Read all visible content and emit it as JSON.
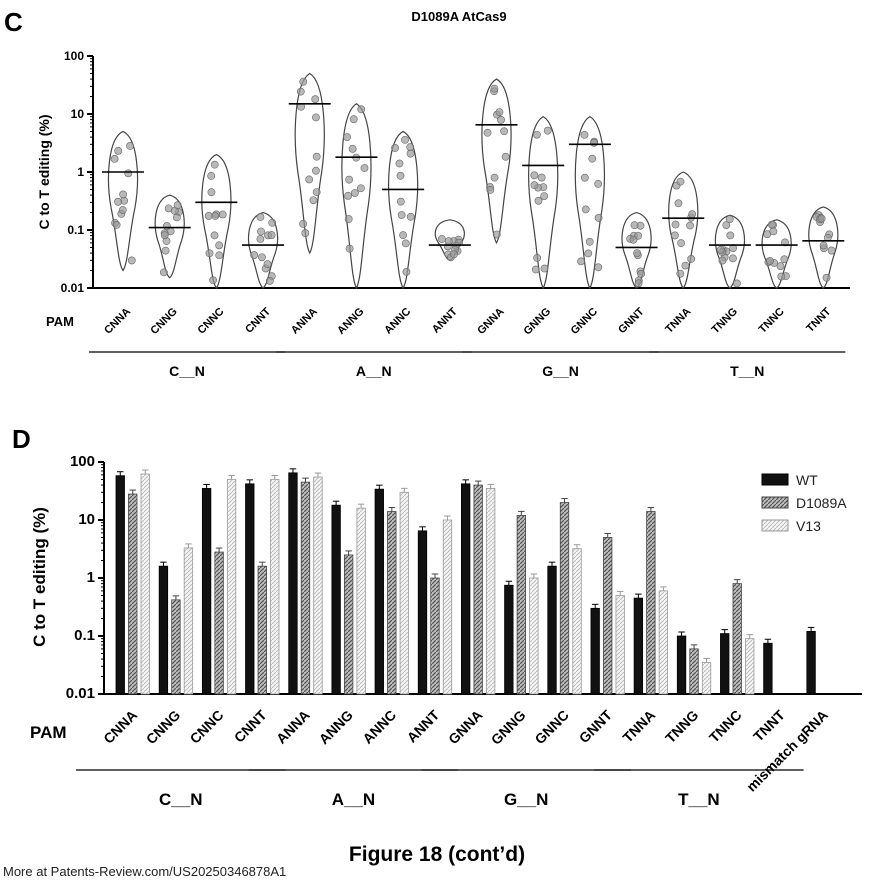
{
  "figure_caption": "Figure 18 (cont’d)",
  "footer": "More at Patents-Review.com/US20250346878A1",
  "colors": {
    "wt": "#111111",
    "d1089a": "#7a7a7a",
    "v13": "#e8e8e8",
    "stroke": "#333333",
    "dot": "#9a9a9a"
  },
  "chart_data": [
    {
      "panel": "C",
      "type": "violin",
      "title": "D1089A AtCas9",
      "ylabel": "C to T editing (%)",
      "yscale": "log",
      "ylim": [
        0.01,
        100
      ],
      "yticks": [
        "0.01",
        "0.1",
        "1",
        "10",
        "100"
      ],
      "row_label": "PAM",
      "categories": [
        "CNNA",
        "CNNG",
        "CNNC",
        "CNNT",
        "ANNA",
        "ANNG",
        "ANNC",
        "ANNT",
        "GNNA",
        "GNNG",
        "GNNC",
        "GNNT",
        "TNNA",
        "TNNG",
        "TNNC",
        "TNNT"
      ],
      "groups": [
        "C__N",
        "A__N",
        "G__N",
        "T__N"
      ],
      "means": [
        1.0,
        0.11,
        0.3,
        0.055,
        15,
        1.8,
        0.5,
        0.055,
        6.5,
        1.3,
        3.0,
        0.05,
        0.16,
        0.055,
        0.055,
        0.065
      ],
      "ranges": [
        [
          0.02,
          5
        ],
        [
          0.015,
          0.4
        ],
        [
          0.01,
          2
        ],
        [
          0.01,
          0.2
        ],
        [
          0.04,
          50
        ],
        [
          0.01,
          15
        ],
        [
          0.01,
          5
        ],
        [
          0.03,
          0.15
        ],
        [
          0.06,
          40
        ],
        [
          0.01,
          9
        ],
        [
          0.01,
          9
        ],
        [
          0.01,
          0.2
        ],
        [
          0.01,
          1
        ],
        [
          0.01,
          0.18
        ],
        [
          0.01,
          0.15
        ],
        [
          0.01,
          0.25
        ]
      ]
    },
    {
      "panel": "D",
      "type": "bar",
      "ylabel": "C to T editing (%)",
      "yscale": "log",
      "ylim": [
        0.01,
        100
      ],
      "yticks": [
        "0.01",
        "0.1",
        "1",
        "10",
        "100"
      ],
      "row_label": "PAM",
      "categories": [
        "CNNA",
        "CNNG",
        "CNNC",
        "CNNT",
        "ANNA",
        "ANNG",
        "ANNC",
        "ANNT",
        "GNNA",
        "GNNG",
        "GNNC",
        "GNNT",
        "TNNA",
        "TNNG",
        "TNNC",
        "TNNT",
        "mismatch gRNA"
      ],
      "groups": [
        "C__N",
        "A__N",
        "G__N",
        "T__N"
      ],
      "legend_position": "top-right",
      "series": [
        {
          "name": "WT",
          "values": [
            58,
            1.6,
            35,
            42,
            65,
            18,
            34,
            6.5,
            42,
            0.75,
            1.6,
            0.3,
            0.45,
            0.1,
            0.11,
            0.075,
            0.12
          ]
        },
        {
          "name": "D1089A",
          "values": [
            28,
            0.42,
            2.8,
            1.6,
            45,
            2.5,
            14,
            1.0,
            40,
            12,
            20,
            5.0,
            14,
            0.06,
            0.8,
            null,
            null
          ]
        },
        {
          "name": "V13",
          "values": [
            62,
            3.3,
            50,
            50,
            55,
            16,
            30,
            10,
            35,
            1.0,
            3.2,
            0.5,
            0.6,
            0.035,
            0.09,
            null,
            null
          ]
        }
      ]
    }
  ]
}
